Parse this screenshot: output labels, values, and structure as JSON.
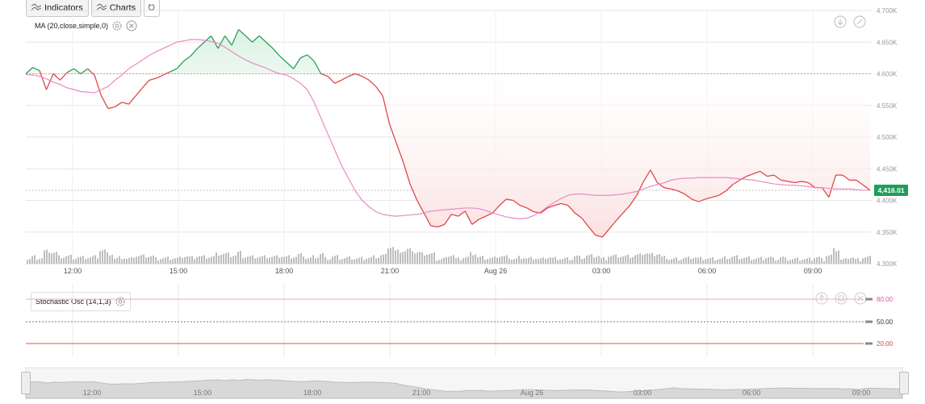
{
  "toolbar": {
    "indicators_label": "Indicators",
    "charts_label": "Charts"
  },
  "legends": {
    "main": "MA (20,close,simple,0)",
    "stochastic": "Stochastic Osc (14,1,3)"
  },
  "colors": {
    "up": "#2e9e5b",
    "down": "#e04848",
    "ma": "#e98ac4",
    "up_fill": "#d9f1e2",
    "down_fill": "#fbe0e0",
    "last_badge": "#1f9e5a"
  },
  "icons": [
    "indicators-icon",
    "charts-icon",
    "reset-icon",
    "gear-icon",
    "close-icon",
    "download-icon",
    "arrow-up-icon",
    "maximize-icon"
  ],
  "chart_data": [
    {
      "type": "line",
      "x_ticks": [
        "12:00",
        "15:00",
        "18:00",
        "21:00",
        "Aug 26",
        "03:00",
        "06:00",
        "09:00"
      ],
      "y_ticks": [
        "4.700K",
        "4.650K",
        "4.600K",
        "4.550K",
        "4.500K",
        "4.450K",
        "4.400K",
        "4.350K",
        "4.300K"
      ],
      "ylim": [
        4300,
        4700
      ],
      "reference_level": 4600,
      "last_price_label": "4,416.01",
      "series": [
        {
          "name": "",
          "values": [
            4600,
            4610,
            4605,
            4575,
            4600,
            4590,
            4602,
            4608,
            4600,
            4608,
            4598,
            4565,
            4545,
            4548,
            4555,
            4552,
            4565,
            4578,
            4590,
            4593,
            4598,
            4603,
            4608,
            4620,
            4628,
            4640,
            4650,
            4660,
            4640,
            4660,
            4645,
            4670,
            4660,
            4650,
            4660,
            4650,
            4640,
            4628,
            4618,
            4608,
            4625,
            4630,
            4620,
            4600,
            4596,
            4585,
            4590,
            4596,
            4600,
            4596,
            4590,
            4580,
            4565,
            4520,
            4490,
            4460,
            4425,
            4400,
            4380,
            4360,
            4358,
            4362,
            4378,
            4375,
            4383,
            4362,
            4370,
            4375,
            4380,
            4392,
            4402,
            4400,
            4392,
            4388,
            4382,
            4380,
            4388,
            4392,
            4395,
            4392,
            4380,
            4372,
            4358,
            4345,
            4342,
            4355,
            4368,
            4380,
            4392,
            4408,
            4430,
            4448,
            4428,
            4420,
            4418,
            4415,
            4410,
            4402,
            4398,
            4402,
            4405,
            4408,
            4415,
            4425,
            4432,
            4438,
            4442,
            4446,
            4438,
            4440,
            4432,
            4430,
            4428,
            4430,
            4428,
            4420,
            4420,
            4405,
            4440,
            4440,
            4432,
            4432,
            4424,
            4416
          ]
        },
        {
          "name": "MA (20,close,simple,0)",
          "values": [
            4599,
            4598,
            4596,
            4592,
            4587,
            4583,
            4578,
            4575,
            4572,
            4571,
            4570,
            4575,
            4580,
            4590,
            4598,
            4608,
            4615,
            4622,
            4629,
            4635,
            4640,
            4645,
            4650,
            4652,
            4654,
            4654,
            4653,
            4651,
            4648,
            4642,
            4635,
            4628,
            4622,
            4617,
            4613,
            4609,
            4604,
            4600,
            4598,
            4592,
            4585,
            4575,
            4555,
            4530,
            4505,
            4480,
            4455,
            4435,
            4415,
            4400,
            4390,
            4382,
            4378,
            4376,
            4375,
            4376,
            4377,
            4378,
            4380,
            4383,
            4384,
            4385,
            4386,
            4387,
            4388,
            4388,
            4387,
            4384,
            4380,
            4377,
            4374,
            4372,
            4371,
            4372,
            4376,
            4382,
            4390,
            4397,
            4403,
            4408,
            4410,
            4410,
            4409,
            4408,
            4408,
            4408,
            4409,
            4410,
            4412,
            4414,
            4418,
            4422,
            4425,
            4428,
            4432,
            4434,
            4435,
            4435,
            4436,
            4436,
            4436,
            4436,
            4436,
            4435,
            4434,
            4433,
            4432,
            4430,
            4428,
            4426,
            4425,
            4424,
            4424,
            4423,
            4422,
            4420,
            4420,
            4419,
            4418,
            4418,
            4418,
            4417,
            4416,
            4416
          ]
        }
      ]
    },
    {
      "type": "line",
      "title": "Stochastic Osc (14,1,3)",
      "y_ticks": [
        "80.00",
        "50.00",
        "20.00"
      ],
      "levels": [
        80,
        50,
        20
      ]
    }
  ]
}
